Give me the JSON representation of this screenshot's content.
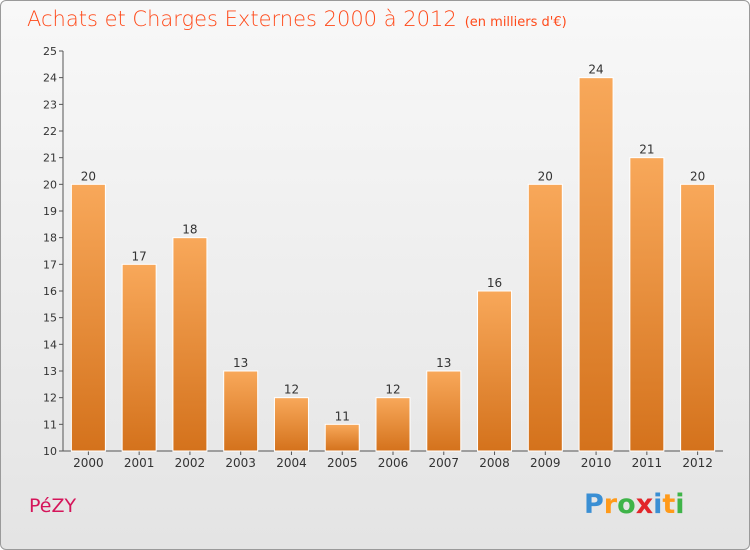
{
  "title": "Achats et Charges Externes 2000 à 2012",
  "unit": "(en milliers d'€)",
  "commune": "PéZY",
  "brand": {
    "letters": [
      "P",
      "r",
      "o",
      "x",
      "i",
      "t",
      "i"
    ],
    "colors": [
      "#3a8fd4",
      "#ff9a1a",
      "#3fb449",
      "#e2262a",
      "#3a8fd4",
      "#ff9a1a",
      "#3fb449"
    ]
  },
  "colors": {
    "bar_top": "#f8a85a",
    "bar_bottom": "#d4721c",
    "title": "#ff4a1a",
    "commune": "#d5155a"
  },
  "chart_data": {
    "type": "bar",
    "categories": [
      "2000",
      "2001",
      "2002",
      "2003",
      "2004",
      "2005",
      "2006",
      "2007",
      "2008",
      "2009",
      "2010",
      "2011",
      "2012"
    ],
    "values": [
      20,
      17,
      18,
      13,
      12,
      11,
      12,
      13,
      16,
      20,
      24,
      21,
      20
    ],
    "ylim": [
      10,
      25
    ],
    "yticks": [
      10,
      11,
      12,
      13,
      14,
      15,
      16,
      17,
      18,
      19,
      20,
      21,
      22,
      23,
      24,
      25
    ],
    "xlabel": "",
    "ylabel": "",
    "grid": false,
    "data_labels": true
  }
}
